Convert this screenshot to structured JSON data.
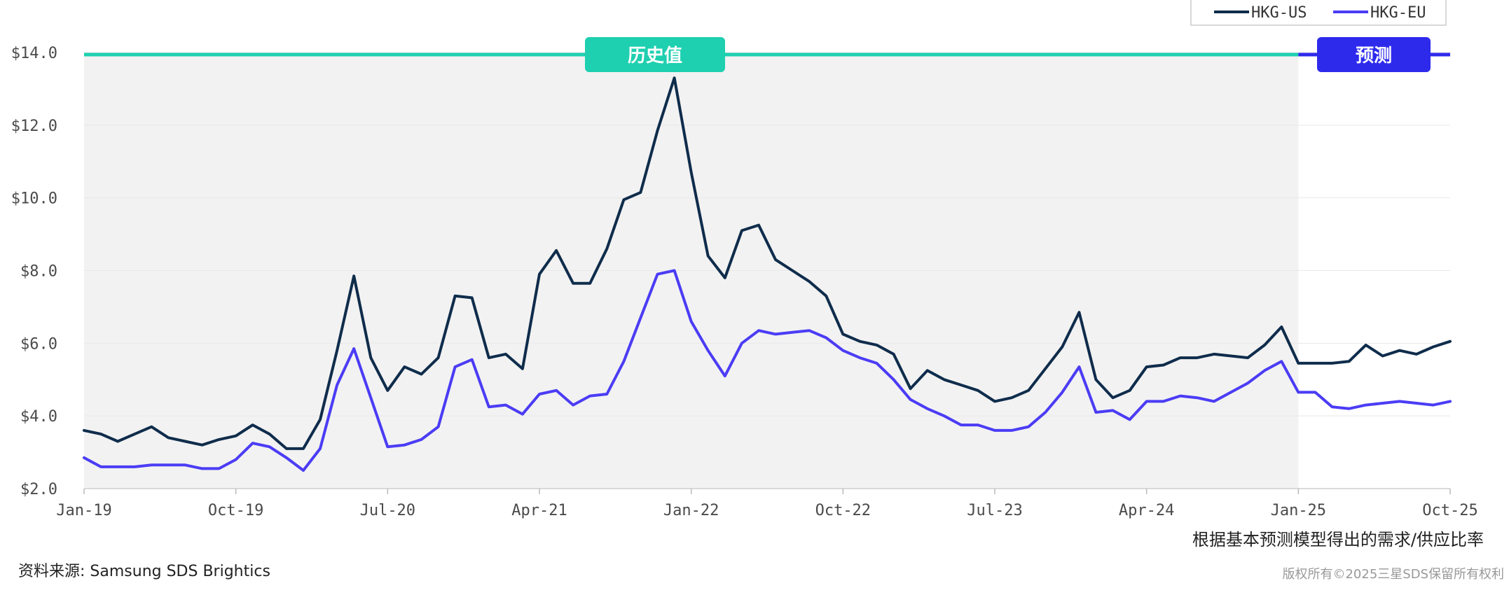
{
  "colors": {
    "hkg_us": "#0f2c4b",
    "hkg_eu": "#4b3cf5",
    "historical": "#1ecfb0",
    "forecast": "#2e2aec",
    "shade": "#f2f2f2",
    "grid": "#e8e8e8"
  },
  "phases": {
    "historical_label": "历史值",
    "forecast_label": "预测"
  },
  "legend": [
    {
      "name": "HKG-US",
      "color_key": "hkg_us"
    },
    {
      "name": "HKG-EU",
      "color_key": "hkg_eu"
    }
  ],
  "footer": {
    "subtitle": "根据基本预测模型得出的需求/供应比率",
    "source": "资料来源: Samsung SDS Brightics",
    "copyright": "版权所有©2025三星SDS保留所有权利"
  },
  "chart_data": {
    "type": "line",
    "title": "",
    "xlabel": "",
    "ylabel": "",
    "ylim": [
      2,
      14
    ],
    "yticks": [
      "$2.0",
      "$4.0",
      "$6.0",
      "$8.0",
      "$10.0",
      "$12.0",
      "$14.0"
    ],
    "xticks": [
      {
        "index": 0,
        "label": "Jan-19"
      },
      {
        "index": 9,
        "label": "Oct-19"
      },
      {
        "index": 18,
        "label": "Jul-20"
      },
      {
        "index": 27,
        "label": "Apr-21"
      },
      {
        "index": 36,
        "label": "Jan-22"
      },
      {
        "index": 45,
        "label": "Oct-22"
      },
      {
        "index": 54,
        "label": "Jul-23"
      },
      {
        "index": 63,
        "label": "Apr-24"
      },
      {
        "index": 72,
        "label": "Jan-25"
      },
      {
        "index": 81,
        "label": "Oct-25"
      }
    ],
    "start_month": "Jan-19",
    "forecast_start": "Jan-25",
    "grid": true,
    "legend_position": "top-right",
    "series": [
      {
        "name": "HKG-US",
        "values": [
          3.6,
          3.5,
          3.3,
          3.5,
          3.7,
          3.4,
          3.3,
          3.2,
          3.35,
          3.45,
          3.75,
          3.5,
          3.1,
          3.1,
          3.9,
          5.8,
          7.85,
          5.6,
          4.7,
          5.35,
          5.15,
          5.6,
          7.3,
          7.25,
          5.6,
          5.7,
          5.3,
          7.9,
          8.55,
          7.65,
          7.65,
          8.6,
          9.95,
          10.15,
          11.85,
          13.3,
          10.7,
          8.4,
          7.8,
          9.1,
          9.25,
          8.3,
          8.0,
          7.7,
          7.3,
          6.25,
          6.05,
          5.95,
          5.7,
          4.75,
          5.25,
          5.0,
          4.85,
          4.7,
          4.4,
          4.5,
          4.7,
          5.3,
          5.9,
          6.85,
          5.0,
          4.5,
          4.7,
          5.35,
          5.4,
          5.6,
          5.6,
          5.7,
          5.65,
          5.6,
          5.95,
          6.45,
          5.45,
          5.45,
          5.45,
          5.5,
          5.95,
          5.65,
          5.8,
          5.7,
          5.9,
          6.05
        ]
      },
      {
        "name": "HKG-EU",
        "values": [
          2.85,
          2.6,
          2.6,
          2.6,
          2.65,
          2.65,
          2.65,
          2.55,
          2.55,
          2.8,
          3.25,
          3.15,
          2.85,
          2.5,
          3.1,
          4.85,
          5.85,
          4.5,
          3.15,
          3.2,
          3.35,
          3.7,
          5.35,
          5.55,
          4.25,
          4.3,
          4.05,
          4.6,
          4.7,
          4.3,
          4.55,
          4.6,
          5.5,
          6.7,
          7.9,
          8.0,
          6.6,
          5.8,
          5.1,
          6.0,
          6.35,
          6.25,
          6.3,
          6.35,
          6.15,
          5.8,
          5.6,
          5.45,
          5.0,
          4.45,
          4.2,
          4.0,
          3.75,
          3.75,
          3.6,
          3.6,
          3.7,
          4.1,
          4.65,
          5.35,
          4.1,
          4.15,
          3.9,
          4.4,
          4.4,
          4.55,
          4.5,
          4.4,
          4.65,
          4.9,
          5.25,
          5.5,
          4.65,
          4.65,
          4.25,
          4.2,
          4.3,
          4.35,
          4.4,
          4.35,
          4.3,
          4.4
        ]
      }
    ]
  }
}
